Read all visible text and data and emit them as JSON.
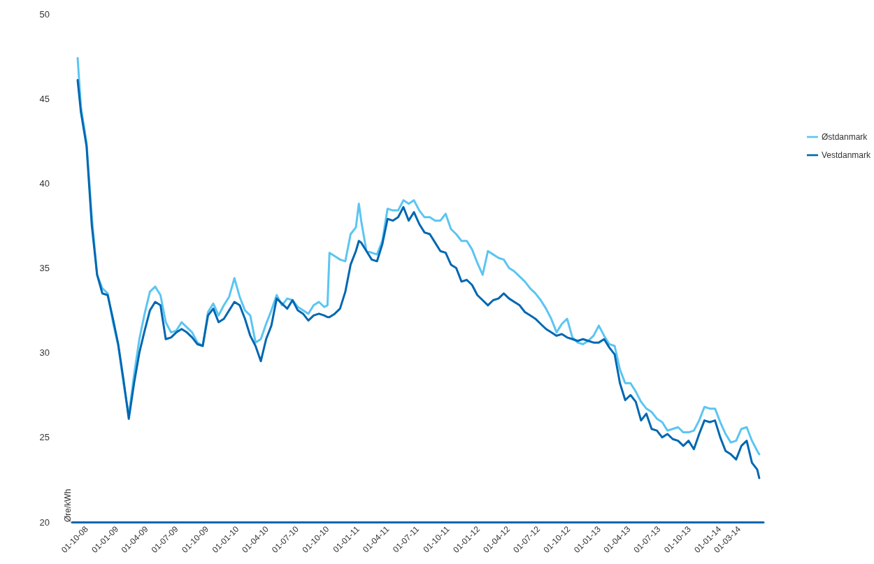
{
  "chart_data": {
    "type": "line",
    "ylabel": "Øre/kWh",
    "x": [
      "2008-09-04",
      "2008-09-14",
      "2008-10-01",
      "2008-10-17",
      "2008-11-02",
      "2008-11-18",
      "2008-12-04",
      "2008-12-20",
      "2009-01-05",
      "2009-01-21",
      "2009-02-06",
      "2009-02-22",
      "2009-03-10",
      "2009-03-26",
      "2009-04-11",
      "2009-04-27",
      "2009-05-13",
      "2009-05-29",
      "2009-06-14",
      "2009-06-30",
      "2009-07-16",
      "2009-08-01",
      "2009-08-17",
      "2009-09-02",
      "2009-09-18",
      "2009-10-04",
      "2009-10-20",
      "2009-11-05",
      "2009-11-21",
      "2009-12-07",
      "2009-12-23",
      "2010-01-08",
      "2010-01-24",
      "2010-02-09",
      "2010-02-25",
      "2010-03-13",
      "2010-03-29",
      "2010-04-14",
      "2010-04-30",
      "2010-05-16",
      "2010-06-01",
      "2010-06-17",
      "2010-07-03",
      "2010-07-19",
      "2010-08-04",
      "2010-08-20",
      "2010-09-05",
      "2010-09-21",
      "2010-10-01",
      "2010-10-07",
      "2010-10-23",
      "2010-11-08",
      "2010-11-24",
      "2010-12-10",
      "2010-12-26",
      "2011-01-04",
      "2011-01-11",
      "2011-01-27",
      "2011-02-12",
      "2011-02-28",
      "2011-03-16",
      "2011-04-01",
      "2011-04-17",
      "2011-05-03",
      "2011-05-19",
      "2011-06-04",
      "2011-06-20",
      "2011-07-06",
      "2011-07-22",
      "2011-08-07",
      "2011-08-23",
      "2011-09-08",
      "2011-09-24",
      "2011-10-10",
      "2011-10-26",
      "2011-11-11",
      "2011-11-27",
      "2011-12-13",
      "2011-12-29",
      "2012-01-14",
      "2012-01-30",
      "2012-02-15",
      "2012-03-02",
      "2012-03-18",
      "2012-04-03",
      "2012-04-19",
      "2012-05-05",
      "2012-05-21",
      "2012-06-06",
      "2012-06-22",
      "2012-07-08",
      "2012-07-24",
      "2012-08-09",
      "2012-08-25",
      "2012-09-10",
      "2012-09-26",
      "2012-10-12",
      "2012-10-28",
      "2012-11-13",
      "2012-11-29",
      "2012-12-15",
      "2012-12-31",
      "2013-01-16",
      "2013-02-01",
      "2013-02-17",
      "2013-03-05",
      "2013-03-21",
      "2013-04-06",
      "2013-04-22",
      "2013-05-08",
      "2013-05-24",
      "2013-06-09",
      "2013-06-25",
      "2013-07-11",
      "2013-07-27",
      "2013-08-12",
      "2013-08-28",
      "2013-09-13",
      "2013-09-29",
      "2013-10-15",
      "2013-10-31",
      "2013-11-16",
      "2013-12-02",
      "2013-12-18",
      "2014-01-03",
      "2014-01-19",
      "2014-02-04",
      "2014-02-20",
      "2014-03-08",
      "2014-03-24",
      "2014-04-09",
      "2014-04-25",
      "2014-05-01"
    ],
    "series": [
      {
        "name": "Østdanmark",
        "color": "#5bc5f2",
        "values": [
          47.4,
          44.5,
          42.4,
          38.0,
          34.6,
          33.8,
          33.5,
          31.8,
          30.4,
          28.2,
          26.3,
          28.7,
          30.8,
          32.3,
          33.6,
          33.9,
          33.4,
          31.8,
          31.2,
          31.3,
          31.8,
          31.5,
          31.2,
          30.6,
          30.4,
          32.4,
          32.9,
          32.2,
          32.8,
          33.3,
          34.4,
          33.3,
          32.5,
          32.2,
          30.6,
          30.8,
          31.7,
          32.5,
          33.4,
          32.8,
          33.2,
          33.1,
          32.7,
          32.5,
          32.3,
          32.8,
          33.0,
          32.7,
          32.8,
          35.9,
          35.7,
          35.5,
          35.4,
          37.0,
          37.4,
          38.8,
          37.8,
          36.0,
          35.9,
          35.8,
          36.6,
          38.5,
          38.4,
          38.4,
          39.0,
          38.8,
          39.0,
          38.4,
          38.0,
          38.0,
          37.8,
          37.8,
          38.2,
          37.3,
          37.0,
          36.6,
          36.6,
          36.1,
          35.3,
          34.6,
          36.0,
          35.8,
          35.6,
          35.5,
          35.0,
          34.8,
          34.5,
          34.2,
          33.8,
          33.5,
          33.1,
          32.6,
          32.0,
          31.2,
          31.7,
          32.0,
          30.9,
          30.6,
          30.5,
          30.7,
          31.0,
          31.6,
          31.0,
          30.5,
          30.4,
          29.0,
          28.2,
          28.2,
          27.7,
          27.1,
          26.7,
          26.5,
          26.1,
          25.9,
          25.4,
          25.5,
          25.6,
          25.3,
          25.3,
          25.4,
          26.0,
          26.8,
          26.7,
          26.7,
          25.9,
          25.2,
          24.7,
          24.8,
          25.5,
          25.6,
          24.8,
          24.2,
          24.0
        ]
      },
      {
        "name": "Vestdanmark",
        "color": "#0067b1",
        "values": [
          46.1,
          44.2,
          42.2,
          37.5,
          34.6,
          33.5,
          33.4,
          32.0,
          30.5,
          28.4,
          26.1,
          28.2,
          30.0,
          31.3,
          32.5,
          33.0,
          32.8,
          30.8,
          30.9,
          31.2,
          31.4,
          31.2,
          30.9,
          30.5,
          30.4,
          32.2,
          32.6,
          31.8,
          32.0,
          32.5,
          33.0,
          32.8,
          32.0,
          31.0,
          30.4,
          29.5,
          30.8,
          31.6,
          33.2,
          32.9,
          32.6,
          33.1,
          32.5,
          32.3,
          31.9,
          32.2,
          32.3,
          32.2,
          32.1,
          32.1,
          32.3,
          32.6,
          33.6,
          35.2,
          36.0,
          36.6,
          36.5,
          36.0,
          35.5,
          35.4,
          36.4,
          37.9,
          37.8,
          38.0,
          38.6,
          37.8,
          38.3,
          37.6,
          37.1,
          37.0,
          36.5,
          36.0,
          35.9,
          35.2,
          35.0,
          34.2,
          34.3,
          34.0,
          33.4,
          33.1,
          32.8,
          33.1,
          33.2,
          33.5,
          33.2,
          33.0,
          32.8,
          32.4,
          32.2,
          32.0,
          31.7,
          31.4,
          31.2,
          31.0,
          31.1,
          30.9,
          30.8,
          30.7,
          30.8,
          30.7,
          30.6,
          30.6,
          30.8,
          30.3,
          29.9,
          28.2,
          27.2,
          27.5,
          27.1,
          26.0,
          26.4,
          25.5,
          25.4,
          25.0,
          25.2,
          24.9,
          24.8,
          24.5,
          24.8,
          24.3,
          25.2,
          26.0,
          25.9,
          26.0,
          25.0,
          24.2,
          24.0,
          23.7,
          24.5,
          24.8,
          23.5,
          23.1,
          22.6
        ]
      }
    ],
    "xlim": [
      "2008-08-18",
      "2014-05-14"
    ],
    "xticks": [
      {
        "value": "2008-10-01",
        "label": "01-10-08"
      },
      {
        "value": "2009-01-01",
        "label": "01-01-09"
      },
      {
        "value": "2009-04-01",
        "label": "01-04-09"
      },
      {
        "value": "2009-07-01",
        "label": "01-07-09"
      },
      {
        "value": "2009-10-01",
        "label": "01-10-09"
      },
      {
        "value": "2010-01-01",
        "label": "01-01-10"
      },
      {
        "value": "2010-04-01",
        "label": "01-04-10"
      },
      {
        "value": "2010-07-01",
        "label": "01-07-10"
      },
      {
        "value": "2010-10-01",
        "label": "01-10-10"
      },
      {
        "value": "2011-01-01",
        "label": "01-01-11"
      },
      {
        "value": "2011-04-01",
        "label": "01-04-11"
      },
      {
        "value": "2011-07-01",
        "label": "01-07-11"
      },
      {
        "value": "2011-10-01",
        "label": "01-10-11"
      },
      {
        "value": "2012-01-01",
        "label": "01-01-12"
      },
      {
        "value": "2012-04-01",
        "label": "01-04-12"
      },
      {
        "value": "2012-07-01",
        "label": "01-07-12"
      },
      {
        "value": "2012-10-01",
        "label": "01-10-12"
      },
      {
        "value": "2013-01-01",
        "label": "01-01-13"
      },
      {
        "value": "2013-04-01",
        "label": "01-04-13"
      },
      {
        "value": "2013-07-01",
        "label": "01-07-13"
      },
      {
        "value": "2013-10-01",
        "label": "01-10-13"
      },
      {
        "value": "2014-01-01",
        "label": "01-01-14"
      },
      {
        "value": "2014-03-01",
        "label": "01-03-14"
      }
    ],
    "ylim": [
      20,
      50
    ],
    "yticks": [
      20,
      25,
      30,
      35,
      40,
      45,
      50
    ],
    "grid": false,
    "legend": "right",
    "marker": "none",
    "line_style": "solid"
  }
}
